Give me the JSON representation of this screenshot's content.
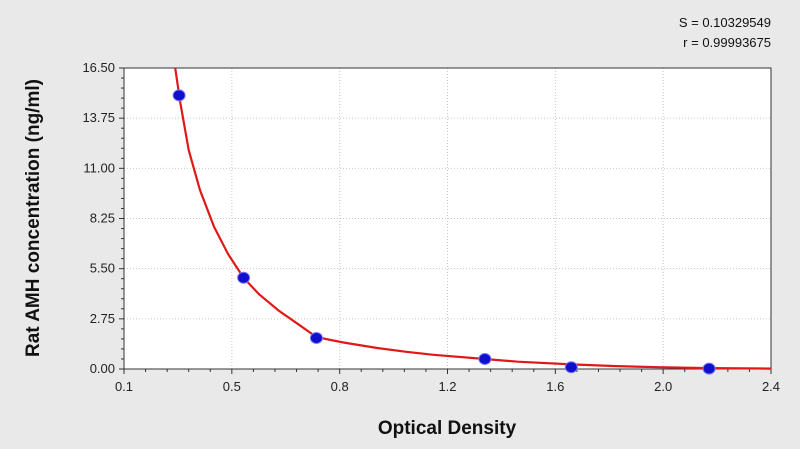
{
  "chart_data": {
    "type": "scatter",
    "xlabel": "Optical Density",
    "ylabel": "Rat AMH concentration (ng/ml)",
    "x_ticks": [
      "0.1",
      "0.5",
      "0.8",
      "1.2",
      "1.6",
      "2.0",
      "2.4"
    ],
    "y_ticks": [
      "0.00",
      "2.75",
      "5.50",
      "8.25",
      "11.00",
      "13.75",
      "16.50"
    ],
    "xlim": [
      0.1,
      2.4
    ],
    "ylim": [
      0,
      16.5
    ],
    "grid": true,
    "stats": {
      "s_label": "S = 0.10329549",
      "r_label": "r = 0.99993675"
    },
    "points": [
      {
        "x": 0.296,
        "y": 15.0
      },
      {
        "x": 0.525,
        "y": 5.0
      },
      {
        "x": 0.784,
        "y": 1.7
      },
      {
        "x": 1.383,
        "y": 0.55
      },
      {
        "x": 1.69,
        "y": 0.1
      },
      {
        "x": 2.18,
        "y": 0.02
      }
    ],
    "curve": [
      {
        "x": 0.282,
        "y": 16.5
      },
      {
        "x": 0.3,
        "y": 14.6
      },
      {
        "x": 0.33,
        "y": 12.0
      },
      {
        "x": 0.37,
        "y": 9.8
      },
      {
        "x": 0.42,
        "y": 7.8
      },
      {
        "x": 0.47,
        "y": 6.3
      },
      {
        "x": 0.525,
        "y": 5.0
      },
      {
        "x": 0.58,
        "y": 4.1
      },
      {
        "x": 0.65,
        "y": 3.2
      },
      {
        "x": 0.72,
        "y": 2.45
      },
      {
        "x": 0.784,
        "y": 1.75
      },
      {
        "x": 0.88,
        "y": 1.45
      },
      {
        "x": 1.0,
        "y": 1.15
      },
      {
        "x": 1.1,
        "y": 0.95
      },
      {
        "x": 1.2,
        "y": 0.78
      },
      {
        "x": 1.383,
        "y": 0.55
      },
      {
        "x": 1.5,
        "y": 0.4
      },
      {
        "x": 1.69,
        "y": 0.25
      },
      {
        "x": 1.85,
        "y": 0.16
      },
      {
        "x": 2.0,
        "y": 0.1
      },
      {
        "x": 2.18,
        "y": 0.05
      },
      {
        "x": 2.4,
        "y": 0.02
      }
    ],
    "point_color": "#1010cc",
    "point_outline": "#7a7aff",
    "curve_color": "#e01818",
    "grid_color": "#c8c8c8",
    "plot_bg": "#ffffff"
  }
}
